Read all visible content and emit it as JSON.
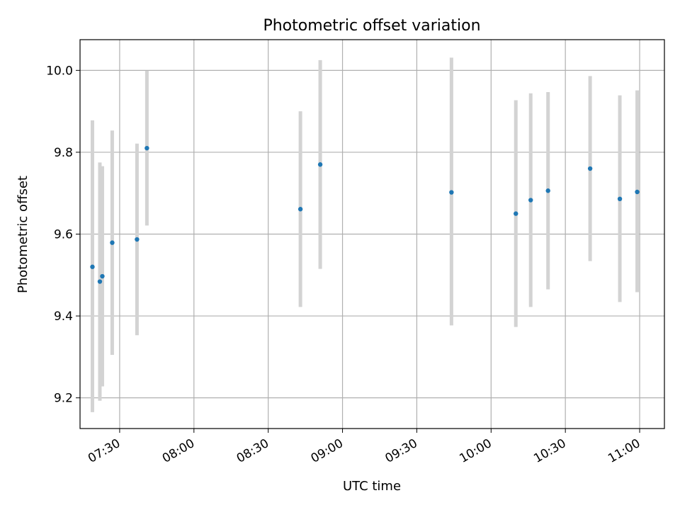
{
  "chart_data": {
    "type": "scatter",
    "title": "Photometric offset variation",
    "xlabel": "UTC time",
    "ylabel": "Photometric offset",
    "x_scale": "time",
    "xlim": [
      "07:14",
      "11:10"
    ],
    "ylim": [
      9.125,
      10.075
    ],
    "x_ticks": [
      "07:30",
      "08:00",
      "08:30",
      "09:00",
      "09:30",
      "10:00",
      "10:30",
      "11:00"
    ],
    "y_ticks": [
      "9.2",
      "9.4",
      "9.6",
      "9.8",
      "10.0"
    ],
    "grid": true,
    "marker_color": "#1f77b4",
    "errorbar_color": "#d3d3d3",
    "points": [
      {
        "x": "07:19",
        "y": 9.52,
        "yerr_low": 9.165,
        "yerr_high": 9.878
      },
      {
        "x": "07:22",
        "y": 9.484,
        "yerr_low": 9.193,
        "yerr_high": 9.775
      },
      {
        "x": "07:23",
        "y": 9.497,
        "yerr_low": 9.228,
        "yerr_high": 9.766
      },
      {
        "x": "07:27",
        "y": 9.579,
        "yerr_low": 9.305,
        "yerr_high": 9.853
      },
      {
        "x": "07:37",
        "y": 9.587,
        "yerr_low": 9.353,
        "yerr_high": 9.821
      },
      {
        "x": "07:41",
        "y": 9.81,
        "yerr_low": 9.621,
        "yerr_high": 9.999
      },
      {
        "x": "08:43",
        "y": 9.661,
        "yerr_low": 9.422,
        "yerr_high": 9.9
      },
      {
        "x": "08:51",
        "y": 9.77,
        "yerr_low": 9.515,
        "yerr_high": 10.025
      },
      {
        "x": "09:44",
        "y": 9.702,
        "yerr_low": 9.377,
        "yerr_high": 10.031
      },
      {
        "x": "10:10",
        "y": 9.65,
        "yerr_low": 9.373,
        "yerr_high": 9.927
      },
      {
        "x": "10:16",
        "y": 9.683,
        "yerr_low": 9.422,
        "yerr_high": 9.944
      },
      {
        "x": "10:23",
        "y": 9.706,
        "yerr_low": 9.465,
        "yerr_high": 9.947
      },
      {
        "x": "10:40",
        "y": 9.76,
        "yerr_low": 9.534,
        "yerr_high": 9.986
      },
      {
        "x": "10:52",
        "y": 9.686,
        "yerr_low": 9.434,
        "yerr_high": 9.939
      },
      {
        "x": "10:59",
        "y": 9.703,
        "yerr_low": 9.458,
        "yerr_high": 9.951
      }
    ]
  }
}
